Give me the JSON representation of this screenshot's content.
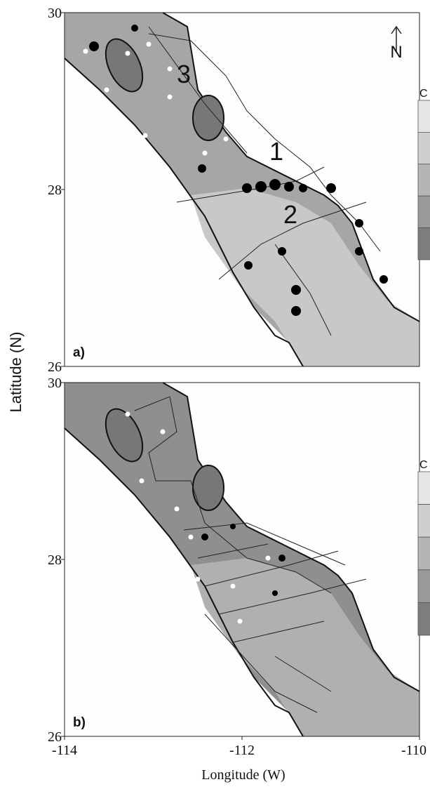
{
  "map": {
    "y_label": "Latitude (N)",
    "x_label": "Longitude (W)",
    "xlim": [
      -114,
      -110
    ],
    "xticks": [
      -114,
      -112,
      -110
    ],
    "north": "N",
    "panels": [
      {
        "label": "a)",
        "ylim": [
          26,
          30
        ],
        "yticks": [
          26,
          28,
          30
        ],
        "annotations": [
          "1",
          "2",
          "3"
        ],
        "colorbar_unit": "C"
      },
      {
        "label": "b)",
        "ylim": [
          26,
          30
        ],
        "yticks": [
          26,
          28,
          30
        ],
        "colorbar_unit": "C"
      }
    ]
  }
}
